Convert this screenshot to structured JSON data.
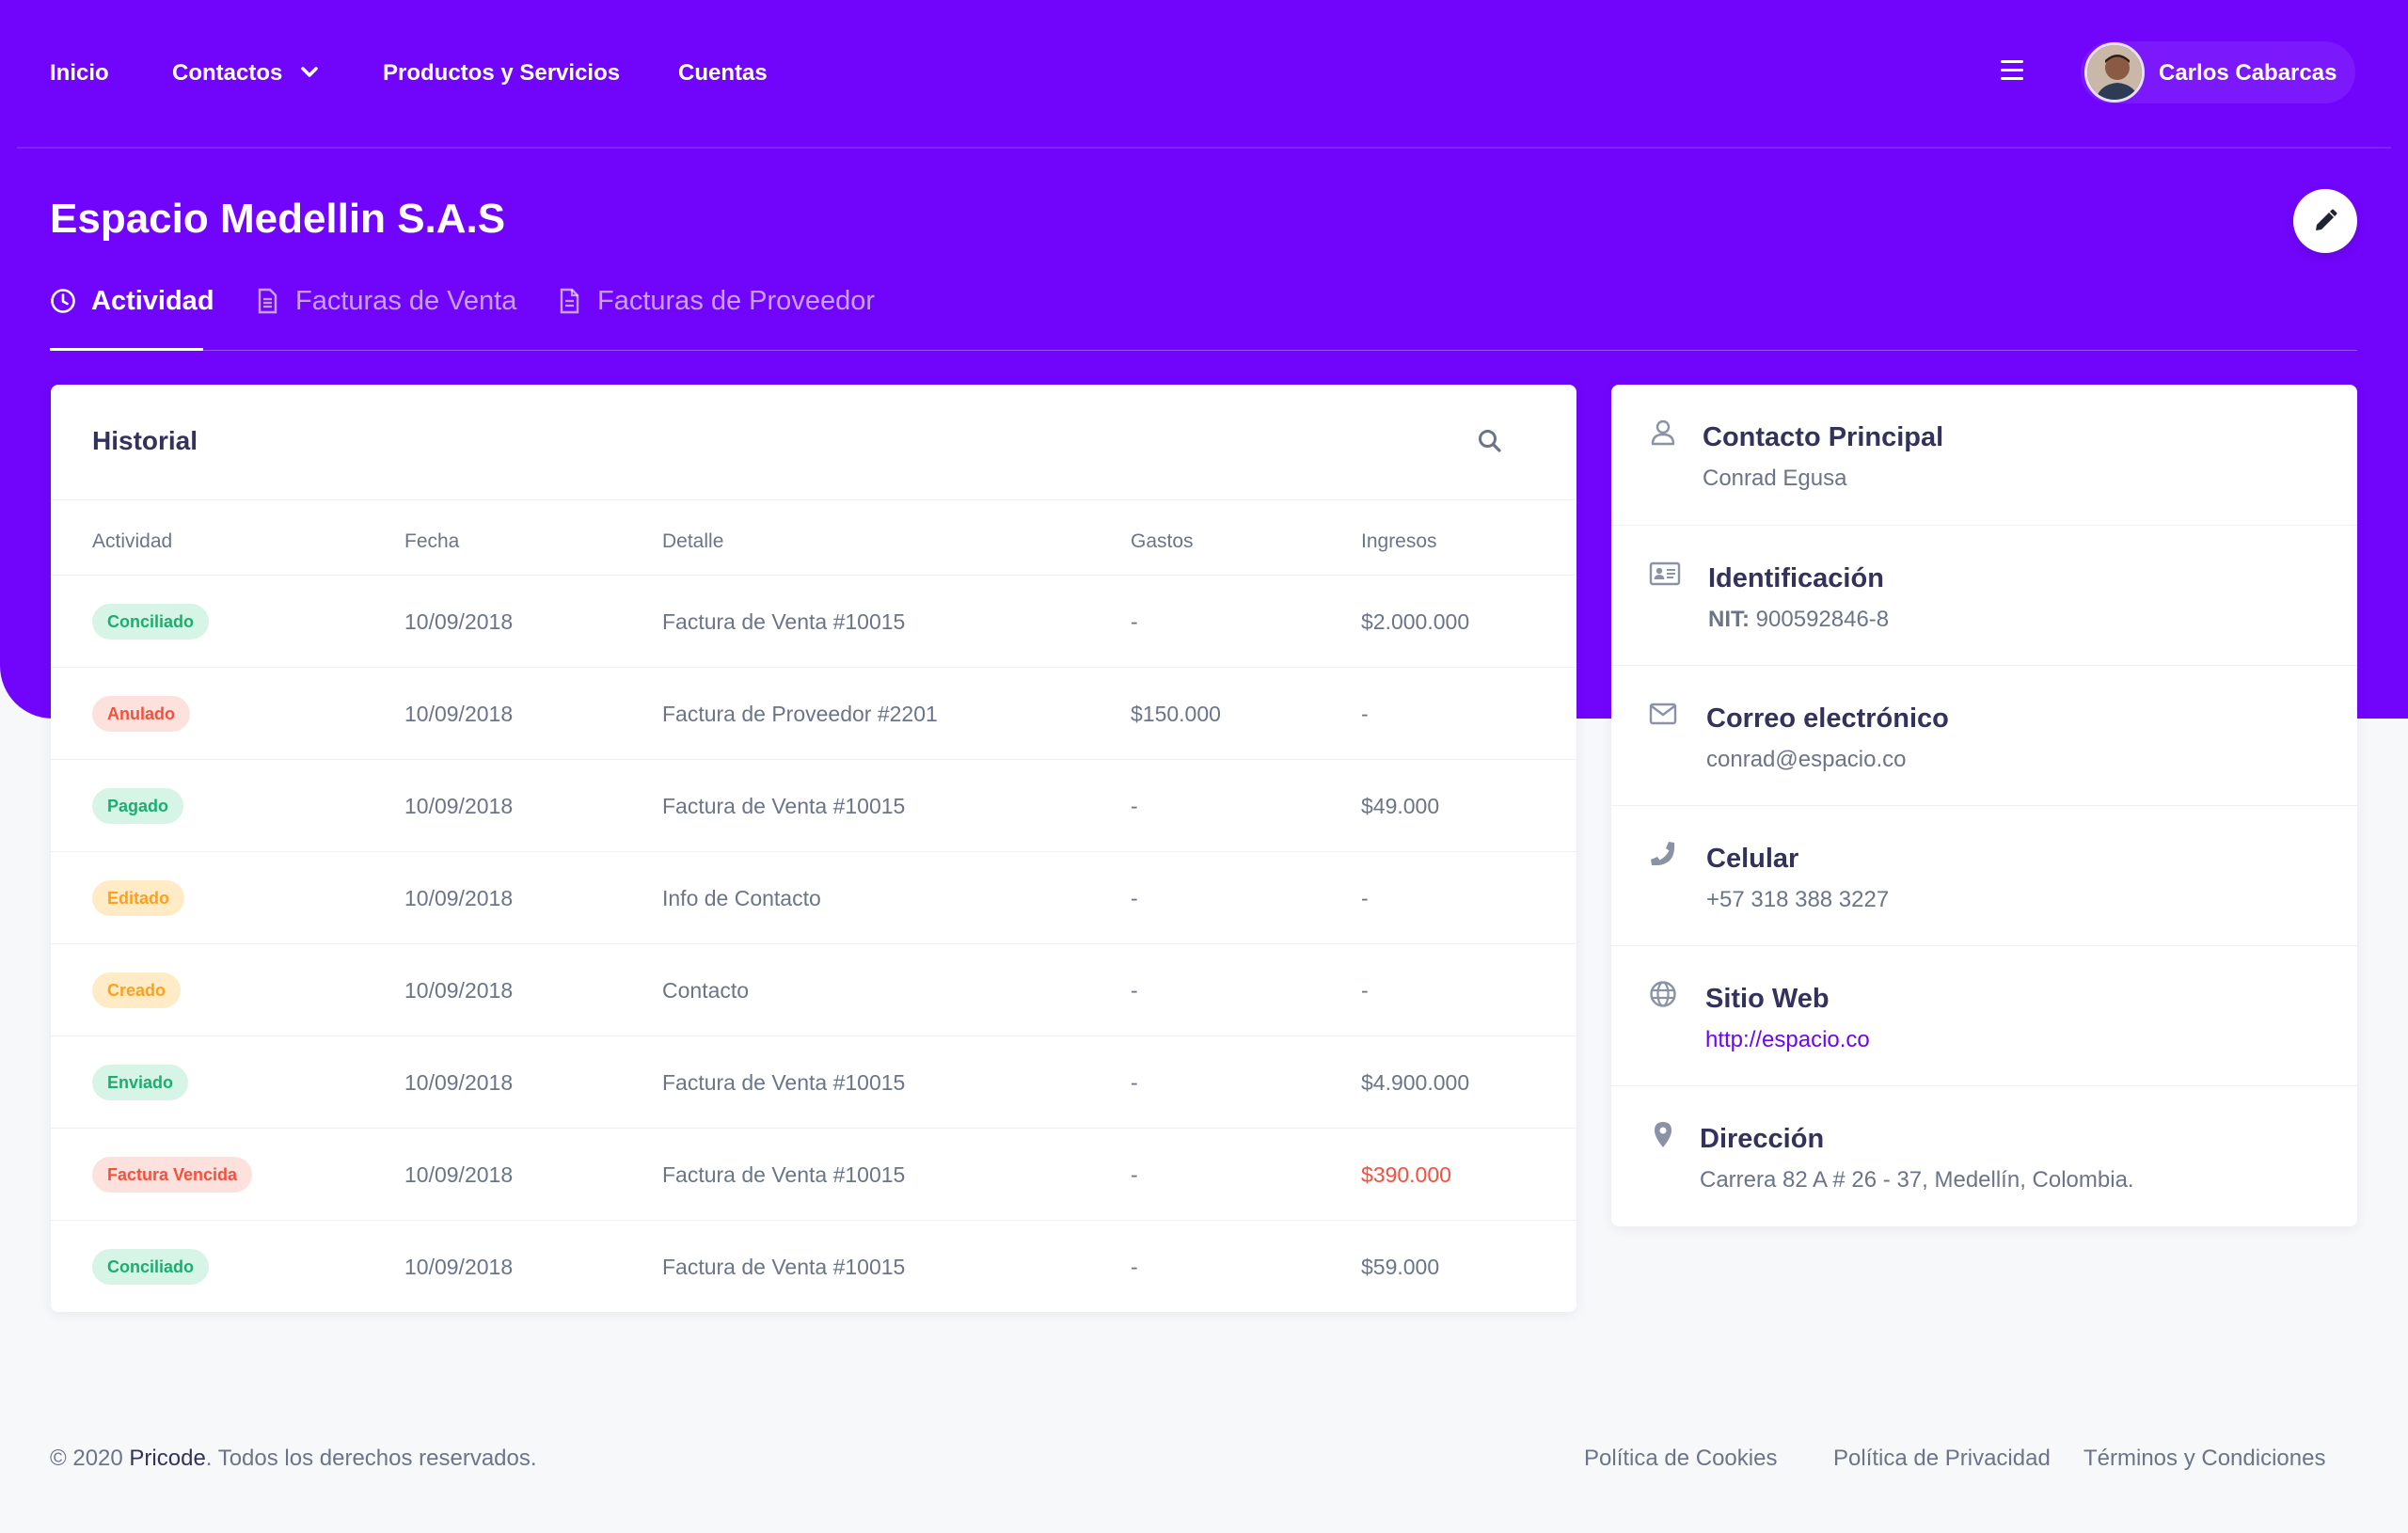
{
  "colors": {
    "brand": "#7105fc",
    "success": "#1aae6f",
    "danger": "#f5503d",
    "warning": "#ff9f1a",
    "link": "#6b06f5"
  },
  "nav": {
    "items": [
      {
        "label": "Inicio"
      },
      {
        "label": "Contactos",
        "icon": "chevron-down-icon"
      },
      {
        "label": "Productos y Servicios"
      },
      {
        "label": "Cuentas"
      }
    ],
    "menu_icon": "hamburger-menu-icon",
    "user": {
      "name": "Carlos Cabarcas"
    }
  },
  "page": {
    "title": "Espacio Medellin S.A.S",
    "edit_icon": "pencil-icon"
  },
  "tabs": [
    {
      "label": "Actividad",
      "icon": "clock-icon",
      "active": true
    },
    {
      "label": "Facturas de Venta",
      "icon": "invoice-icon",
      "active": false
    },
    {
      "label": "Facturas de Proveedor",
      "icon": "document-icon",
      "active": false
    }
  ],
  "history": {
    "title": "Historial",
    "search_icon": "search-icon",
    "columns": [
      "Actividad",
      "Fecha",
      "Detalle",
      "Gastos",
      "Ingresos"
    ],
    "rows": [
      {
        "status": "Conciliado",
        "tone": "success",
        "date": "10/09/2018",
        "detail": "Factura de Venta #10015",
        "expense": "-",
        "income": "$2.000.000",
        "income_tone": "normal"
      },
      {
        "status": "Anulado",
        "tone": "danger",
        "date": "10/09/2018",
        "detail": "Factura de Proveedor #2201",
        "expense": "$150.000",
        "income": "-",
        "income_tone": "normal"
      },
      {
        "status": "Pagado",
        "tone": "success",
        "date": "10/09/2018",
        "detail": "Factura de Venta #10015",
        "expense": "-",
        "income": "$49.000",
        "income_tone": "normal"
      },
      {
        "status": "Editado",
        "tone": "warning",
        "date": "10/09/2018",
        "detail": "Info de Contacto",
        "expense": "-",
        "income": "-",
        "income_tone": "normal"
      },
      {
        "status": "Creado",
        "tone": "warning",
        "date": "10/09/2018",
        "detail": "Contacto",
        "expense": "-",
        "income": "-",
        "income_tone": "normal"
      },
      {
        "status": "Enviado",
        "tone": "success",
        "date": "10/09/2018",
        "detail": "Factura de Venta #10015",
        "expense": "-",
        "income": "$4.900.000",
        "income_tone": "normal"
      },
      {
        "status": "Factura Vencida",
        "tone": "danger",
        "date": "10/09/2018",
        "detail": "Factura de Venta #10015",
        "expense": "-",
        "income": "$390.000",
        "income_tone": "danger"
      },
      {
        "status": "Conciliado",
        "tone": "success",
        "date": "10/09/2018",
        "detail": "Factura de Venta #10015",
        "expense": "-",
        "income": "$59.000",
        "income_tone": "normal"
      }
    ]
  },
  "contact": {
    "items": [
      {
        "icon": "user-icon",
        "label": "Contacto Principal",
        "value": "Conrad Egusa"
      },
      {
        "icon": "id-card-icon",
        "label": "Identificación",
        "value_prefix": "NIT:",
        "value": "900592846-8"
      },
      {
        "icon": "envelope-icon",
        "label": "Correo electrónico",
        "value": "conrad@espacio.co"
      },
      {
        "icon": "phone-icon",
        "label": "Celular",
        "value": "+57 318 388 3227"
      },
      {
        "icon": "globe-icon",
        "label": "Sitio Web",
        "value": "http://espacio.co",
        "is_link": true
      },
      {
        "icon": "map-pin-icon",
        "label": "Dirección",
        "value": "Carrera 82 A # 26 - 37, Medellín, Colombia."
      }
    ]
  },
  "footer": {
    "copyright_prefix": "© 2020",
    "brand": "Pricode",
    "copyright_suffix": ". Todos los derechos reservados.",
    "links": [
      "Política de Cookies",
      "Política de Privacidad",
      "Términos y Condiciones"
    ]
  }
}
